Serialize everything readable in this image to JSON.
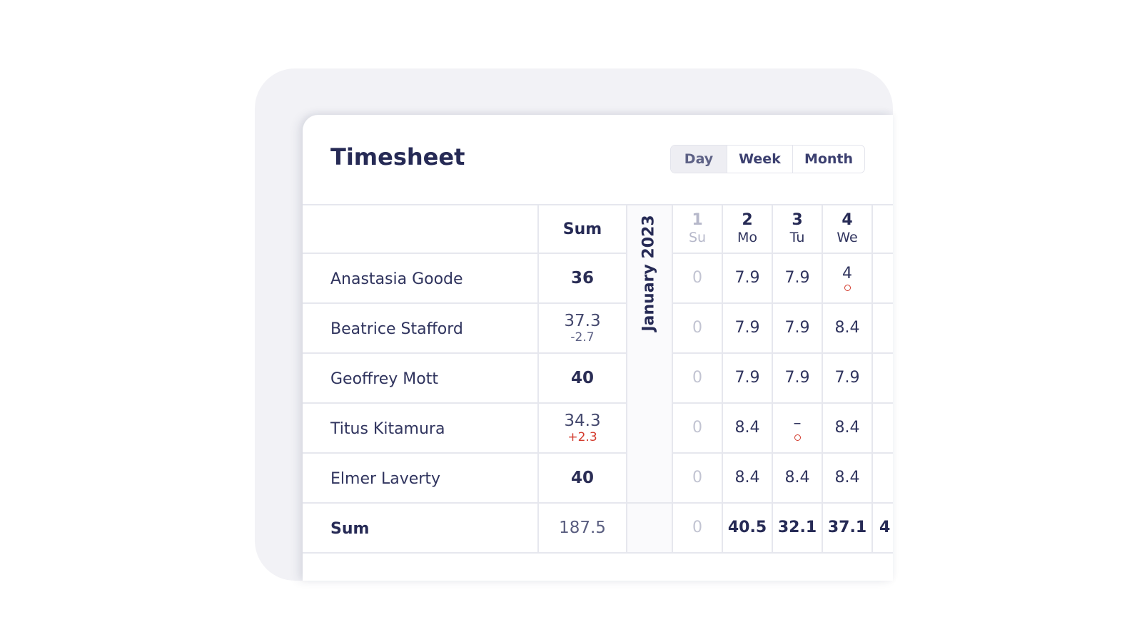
{
  "app": {
    "title": "Timesheet"
  },
  "view_toggle": {
    "options": [
      "Day",
      "Week",
      "Month"
    ],
    "selected": "Day"
  },
  "table": {
    "sum_header": "Sum",
    "month_label": "January 2023",
    "days": [
      {
        "num": "1",
        "weekday": "Su",
        "weekend": true
      },
      {
        "num": "2",
        "weekday": "Mo",
        "weekend": false
      },
      {
        "num": "3",
        "weekday": "Tu",
        "weekend": false
      },
      {
        "num": "4",
        "weekday": "We",
        "weekend": false
      }
    ],
    "rows": [
      {
        "name": "Anastasia Goode",
        "sum": "36",
        "delta": "",
        "values": [
          "0",
          "7.9",
          "7.9",
          "4"
        ],
        "flags": [
          false,
          false,
          false,
          true
        ]
      },
      {
        "name": "Beatrice Stafford",
        "sum": "37.3",
        "delta": "-2.7",
        "values": [
          "0",
          "7.9",
          "7.9",
          "8.4"
        ],
        "flags": [
          false,
          false,
          false,
          false
        ]
      },
      {
        "name": "Geoffrey Mott",
        "sum": "40",
        "delta": "",
        "values": [
          "0",
          "7.9",
          "7.9",
          "7.9"
        ],
        "flags": [
          false,
          false,
          false,
          false
        ]
      },
      {
        "name": "Titus Kitamura",
        "sum": "34.3",
        "delta": "+2.3",
        "values": [
          "0",
          "8.4",
          "–",
          "8.4"
        ],
        "flags": [
          false,
          false,
          true,
          false
        ]
      },
      {
        "name": "Elmer Laverty",
        "sum": "40",
        "delta": "",
        "values": [
          "0",
          "8.4",
          "8.4",
          "8.4"
        ],
        "flags": [
          false,
          false,
          false,
          false
        ]
      }
    ],
    "total_row": {
      "name": "Sum",
      "sum": "187.5",
      "values": [
        "0",
        "40.5",
        "32.1",
        "37.1"
      ],
      "clipped": "4"
    }
  },
  "colors": {
    "text": "#2a2d55",
    "muted": "#b6b8ca",
    "alert": "#d33a2c",
    "card_bg": "#f2f2f6"
  }
}
